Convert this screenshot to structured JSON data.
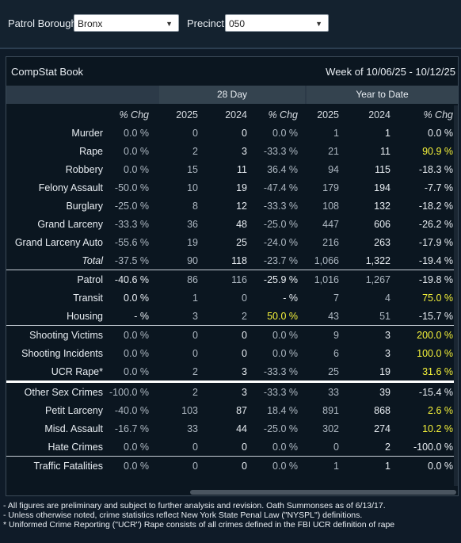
{
  "filters": {
    "borough_label": "Patrol Borough:",
    "borough_value": "Bronx",
    "precinct_label": "Precinct:",
    "precinct_value": "050"
  },
  "card": {
    "title": "CompStat Book",
    "week": "Week of 10/06/25 - 10/12/25"
  },
  "groups": {
    "day28": "28 Day",
    "ytd": "Year to Date"
  },
  "columns": [
    "% Chg",
    "2025",
    "2024",
    "% Chg",
    "2025",
    "2024",
    "% Chg"
  ],
  "rows": [
    {
      "label": "Murder",
      "c": [
        "0.0 %",
        "0",
        "0",
        "0.0 %",
        "1",
        "1",
        "0.0 %"
      ]
    },
    {
      "label": "Rape",
      "c": [
        "0.0 %",
        "2",
        "3",
        "-33.3 %",
        "21",
        "11",
        "90.9 %"
      ]
    },
    {
      "label": "Robbery",
      "c": [
        "0.0 %",
        "15",
        "11",
        "36.4 %",
        "94",
        "115",
        "-18.3 %"
      ]
    },
    {
      "label": "Felony Assault",
      "c": [
        "-50.0 %",
        "10",
        "19",
        "-47.4 %",
        "179",
        "194",
        "-7.7 %"
      ]
    },
    {
      "label": "Burglary",
      "c": [
        "-25.0 %",
        "8",
        "12",
        "-33.3 %",
        "108",
        "132",
        "-18.2 %"
      ]
    },
    {
      "label": "Grand Larceny",
      "c": [
        "-33.3 %",
        "36",
        "48",
        "-25.0 %",
        "447",
        "606",
        "-26.2 %"
      ]
    },
    {
      "label": "Grand Larceny Auto",
      "c": [
        "-55.6 %",
        "19",
        "25",
        "-24.0 %",
        "216",
        "263",
        "-17.9 %"
      ]
    },
    {
      "label": "Total",
      "c": [
        "-37.5 %",
        "90",
        "118",
        "-23.7 %",
        "1,066",
        "1,322",
        "-19.4 %"
      ]
    },
    {
      "label": "Patrol",
      "c": [
        "-40.6 %",
        "86",
        "116",
        "-25.9 %",
        "1,016",
        "1,267",
        "-19.8 %"
      ]
    },
    {
      "label": "Transit",
      "c": [
        "0.0 %",
        "1",
        "0",
        "- %",
        "7",
        "4",
        "75.0 %"
      ]
    },
    {
      "label": "Housing",
      "c": [
        "- %",
        "3",
        "2",
        "50.0 %",
        "43",
        "51",
        "-15.7 %"
      ]
    },
    {
      "label": "Shooting Victims",
      "c": [
        "0.0 %",
        "0",
        "0",
        "0.0 %",
        "9",
        "3",
        "200.0 %"
      ]
    },
    {
      "label": "Shooting Incidents",
      "c": [
        "0.0 %",
        "0",
        "0",
        "0.0 %",
        "6",
        "3",
        "100.0 %"
      ]
    },
    {
      "label": "UCR Rape*",
      "c": [
        "0.0 %",
        "2",
        "3",
        "-33.3 %",
        "25",
        "19",
        "31.6 %"
      ]
    },
    {
      "label": "Other Sex Crimes",
      "c": [
        "-100.0 %",
        "2",
        "3",
        "-33.3 %",
        "33",
        "39",
        "-15.4 %"
      ]
    },
    {
      "label": "Petit Larceny",
      "c": [
        "-40.0 %",
        "103",
        "87",
        "18.4 %",
        "891",
        "868",
        "2.6 %"
      ]
    },
    {
      "label": "Misd. Assault",
      "c": [
        "-16.7 %",
        "33",
        "44",
        "-25.0 %",
        "302",
        "274",
        "10.2 %"
      ]
    },
    {
      "label": "Hate Crimes",
      "c": [
        "0.0 %",
        "0",
        "0",
        "0.0 %",
        "0",
        "2",
        "-100.0 %"
      ]
    },
    {
      "label": "Traffic Fatalities",
      "c": [
        "0.0 %",
        "0",
        "0",
        "0.0 %",
        "1",
        "1",
        "0.0 %"
      ]
    }
  ],
  "footnotes": [
    "- All figures are preliminary and subject to further analysis and revision. Oath Summonses as of 6/13/17.",
    "- Unless otherwise noted, crime statistics reflect New York State Penal Law (\"NYSPL\") definitions.",
    "* Uniformed Crime Reporting (\"UCR\") Rape consists of all crimes defined in the FBI UCR definition of rape"
  ],
  "colors": {
    "highlight": "#f5f23a",
    "background": "#0b1620"
  }
}
